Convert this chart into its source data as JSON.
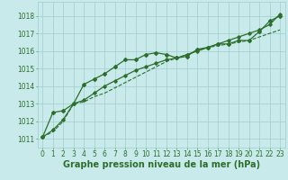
{
  "bg_color": "#c8eaea",
  "grid_color": "#a0cccc",
  "line_color": "#2d6e2d",
  "xlabel": "Graphe pression niveau de la mer (hPa)",
  "xlabel_fontsize": 7,
  "tick_fontsize": 5.5,
  "xlim": [
    -0.5,
    23.5
  ],
  "ylim": [
    1010.5,
    1018.8
  ],
  "yticks": [
    1011,
    1012,
    1013,
    1014,
    1015,
    1016,
    1017,
    1018
  ],
  "xticks": [
    0,
    1,
    2,
    3,
    4,
    5,
    6,
    7,
    8,
    9,
    10,
    11,
    12,
    13,
    14,
    15,
    16,
    17,
    18,
    19,
    20,
    21,
    22,
    23
  ],
  "series1": {
    "x": [
      0,
      1,
      2,
      3,
      4,
      5,
      6,
      7,
      8,
      9,
      10,
      11,
      12,
      13,
      14,
      15,
      16,
      17,
      18,
      19,
      20,
      21,
      22,
      23
    ],
    "y": [
      1011.1,
      1012.5,
      1012.6,
      1013.0,
      1014.1,
      1014.4,
      1014.7,
      1015.1,
      1015.5,
      1015.5,
      1015.8,
      1015.9,
      1015.8,
      1015.6,
      1015.7,
      1016.1,
      1016.2,
      1016.4,
      1016.4,
      1016.6,
      1016.6,
      1017.1,
      1017.7,
      1018.0
    ],
    "marker": "D",
    "markersize": 2.0,
    "linewidth": 0.9
  },
  "series2": {
    "x": [
      0,
      1,
      2,
      3,
      4,
      5,
      6,
      7,
      8,
      9,
      10,
      11,
      12,
      13,
      14,
      15,
      16,
      17,
      18,
      19,
      20,
      21,
      22,
      23
    ],
    "y": [
      1011.1,
      1011.4,
      1012.0,
      1013.0,
      1013.1,
      1013.4,
      1013.6,
      1013.9,
      1014.2,
      1014.5,
      1014.8,
      1015.1,
      1015.4,
      1015.6,
      1015.8,
      1016.0,
      1016.2,
      1016.3,
      1016.4,
      1016.5,
      1016.6,
      1016.8,
      1017.0,
      1017.2
    ],
    "linewidth": 0.8,
    "linestyle": "--"
  },
  "series3": {
    "x": [
      0,
      1,
      2,
      3,
      4,
      5,
      6,
      7,
      8,
      9,
      10,
      11,
      12,
      13,
      14,
      15,
      16,
      17,
      18,
      19,
      20,
      21,
      22,
      23
    ],
    "y": [
      1011.1,
      1011.5,
      1012.1,
      1013.0,
      1013.2,
      1013.6,
      1014.0,
      1014.3,
      1014.6,
      1014.9,
      1015.1,
      1015.3,
      1015.5,
      1015.6,
      1015.8,
      1016.0,
      1016.2,
      1016.4,
      1016.6,
      1016.8,
      1017.0,
      1017.2,
      1017.5,
      1018.1
    ],
    "marker": "D",
    "markersize": 1.8,
    "linewidth": 0.9
  }
}
